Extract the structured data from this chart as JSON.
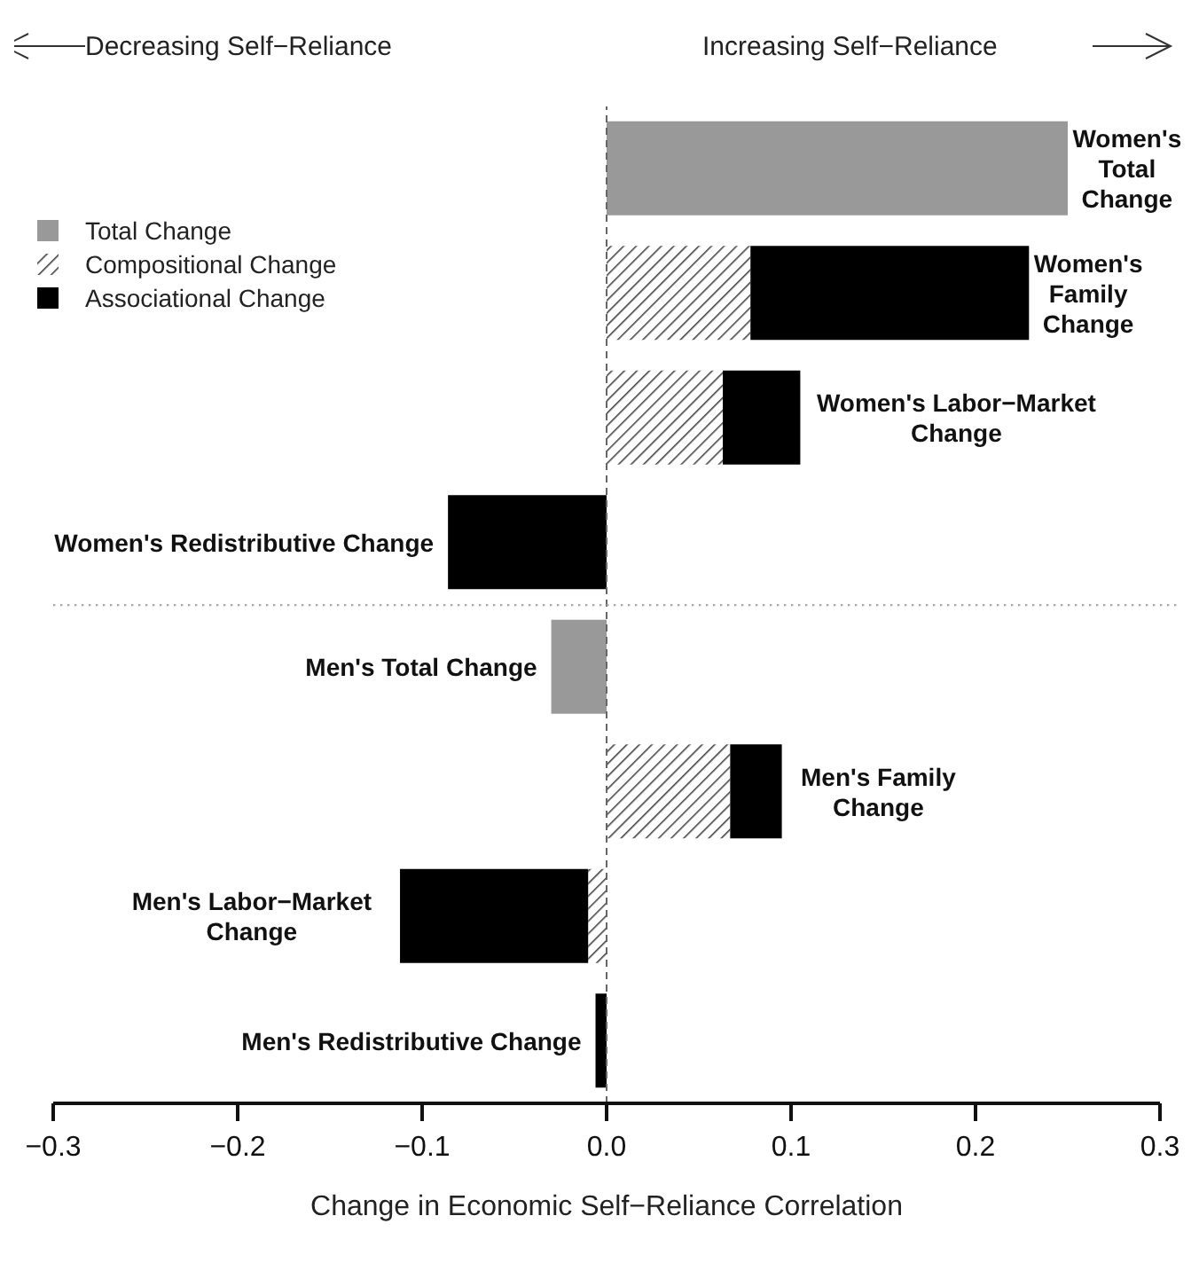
{
  "chart_data": {
    "type": "bar",
    "orientation": "horizontal",
    "stacked": true,
    "xlabel": "Change in Economic Self−Reliance Correlation",
    "categories": [
      "Women's\nTotal\nChange",
      "Women's\nFamily\nChange",
      "Women's Labor−Market\nChange",
      "Women's Redistributive Change",
      "Men's Total Change",
      "Men's Family\nChange",
      "Men's Labor−Market\nChange",
      "Men's Redistributive Change"
    ],
    "series": [
      {
        "name": "Total Change",
        "color": "#999999",
        "values": [
          0.25,
          null,
          null,
          null,
          -0.03,
          null,
          null,
          null
        ]
      },
      {
        "name": "Compositional Change",
        "color": "#444444",
        "values": [
          null,
          0.078,
          0.063,
          null,
          null,
          0.067,
          -0.01,
          null
        ]
      },
      {
        "name": "Associational Change",
        "color": "#000000",
        "values": [
          null,
          0.151,
          0.042,
          -0.086,
          null,
          0.028,
          -0.102,
          -0.006
        ]
      }
    ],
    "xlim": [
      -0.3,
      0.3
    ],
    "xticks": [
      {
        "value": -0.3,
        "label": "−0.3"
      },
      {
        "value": -0.2,
        "label": "−0.2"
      },
      {
        "value": -0.1,
        "label": "−0.1"
      },
      {
        "value": 0,
        "label": "0.0"
      },
      {
        "value": 0.1,
        "label": "0.1"
      },
      {
        "value": 0.2,
        "label": "0.2"
      },
      {
        "value": 0.3,
        "label": "0.3"
      }
    ],
    "ref_lines": [
      {
        "axis": "x",
        "value": 0,
        "line_style": "dashed",
        "color": "#666666"
      }
    ],
    "annotations": [
      "Decreasing Self−Reliance",
      "Increasing Self−Reliance"
    ],
    "legend": "top left",
    "tick_labels": "x",
    "grid": false
  }
}
